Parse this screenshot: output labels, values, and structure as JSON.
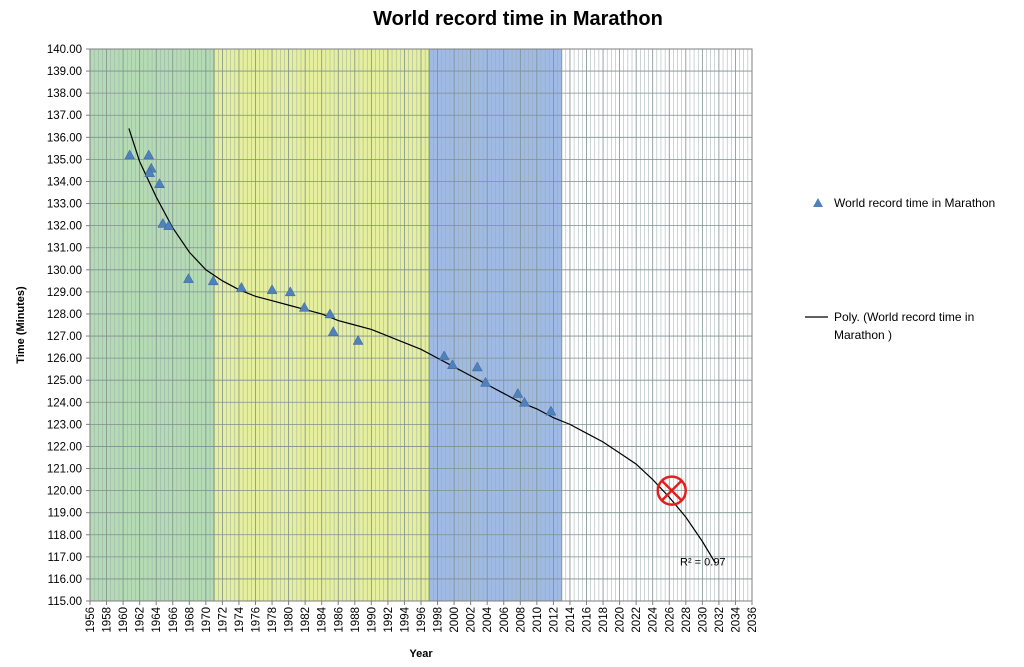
{
  "chart_data": {
    "type": "scatter",
    "title": "World record time in Marathon",
    "xlabel": "Year",
    "ylabel": "Time (Minutes)",
    "xlim": [
      1956,
      2036
    ],
    "ylim": [
      115,
      140
    ],
    "x_ticks": [
      "1956",
      "1958",
      "1960",
      "1962",
      "1964",
      "1966",
      "1968",
      "1970",
      "1972",
      "1974",
      "1976",
      "1978",
      "1980",
      "1982",
      "1984",
      "1986",
      "1988",
      "1990",
      "1992",
      "1994",
      "1996",
      "1998",
      "2000",
      "2002",
      "2004",
      "2006",
      "2008",
      "2010",
      "2012",
      "2014",
      "2016",
      "2018",
      "2020",
      "2022",
      "2024",
      "2026",
      "2028",
      "2030",
      "2032",
      "2034",
      "2036"
    ],
    "y_ticks": [
      "115.00",
      "116.00",
      "117.00",
      "118.00",
      "119.00",
      "120.00",
      "121.00",
      "122.00",
      "123.00",
      "124.00",
      "125.00",
      "126.00",
      "127.00",
      "128.00",
      "129.00",
      "130.00",
      "131.00",
      "132.00",
      "133.00",
      "134.00",
      "135.00",
      "136.00",
      "137.00",
      "138.00",
      "139.00",
      "140.00"
    ],
    "grid": true,
    "bands": [
      {
        "from": 1956,
        "to": 1971,
        "color": "#a8d5a8"
      },
      {
        "from": 1971,
        "to": 1997,
        "color": "#e0ec8c"
      },
      {
        "from": 1997,
        "to": 2013,
        "color": "#8eaee0"
      }
    ],
    "series": [
      {
        "name": "World record time in Marathon",
        "marker": "triangle",
        "color": "#4f81bd",
        "points": [
          {
            "x": 1960.8,
            "y": 135.2
          },
          {
            "x": 1963.1,
            "y": 135.2
          },
          {
            "x": 1963.4,
            "y": 134.6
          },
          {
            "x": 1963.2,
            "y": 134.4
          },
          {
            "x": 1964.4,
            "y": 133.9
          },
          {
            "x": 1964.8,
            "y": 132.1
          },
          {
            "x": 1965.5,
            "y": 132.0
          },
          {
            "x": 1967.9,
            "y": 129.6
          },
          {
            "x": 1970.9,
            "y": 129.5
          },
          {
            "x": 1974.3,
            "y": 129.2
          },
          {
            "x": 1978.0,
            "y": 129.1
          },
          {
            "x": 1980.2,
            "y": 129.0
          },
          {
            "x": 1981.9,
            "y": 128.3
          },
          {
            "x": 1985.0,
            "y": 128.0
          },
          {
            "x": 1985.4,
            "y": 127.2
          },
          {
            "x": 1988.4,
            "y": 126.8
          },
          {
            "x": 1998.8,
            "y": 126.1
          },
          {
            "x": 1999.8,
            "y": 125.7
          },
          {
            "x": 2002.8,
            "y": 125.6
          },
          {
            "x": 2003.8,
            "y": 124.9
          },
          {
            "x": 2007.7,
            "y": 124.4
          },
          {
            "x": 2008.5,
            "y": 124.0
          },
          {
            "x": 2011.7,
            "y": 123.6
          }
        ]
      },
      {
        "name": "Poly. (World record time in Marathon )",
        "type": "line",
        "color": "#000000",
        "points": [
          {
            "x": 1960.7,
            "y": 136.4
          },
          {
            "x": 1962.0,
            "y": 134.9
          },
          {
            "x": 1964.0,
            "y": 133.3
          },
          {
            "x": 1966.0,
            "y": 131.9
          },
          {
            "x": 1968.0,
            "y": 130.8
          },
          {
            "x": 1970.0,
            "y": 130.0
          },
          {
            "x": 1972.0,
            "y": 129.5
          },
          {
            "x": 1974.0,
            "y": 129.1
          },
          {
            "x": 1976.0,
            "y": 128.8
          },
          {
            "x": 1978.0,
            "y": 128.6
          },
          {
            "x": 1980.0,
            "y": 128.4
          },
          {
            "x": 1982.0,
            "y": 128.2
          },
          {
            "x": 1984.0,
            "y": 128.0
          },
          {
            "x": 1986.0,
            "y": 127.7
          },
          {
            "x": 1988.0,
            "y": 127.5
          },
          {
            "x": 1990.0,
            "y": 127.3
          },
          {
            "x": 1992.0,
            "y": 127.0
          },
          {
            "x": 1994.0,
            "y": 126.7
          },
          {
            "x": 1996.0,
            "y": 126.4
          },
          {
            "x": 1998.0,
            "y": 126.0
          },
          {
            "x": 2000.0,
            "y": 125.6
          },
          {
            "x": 2002.0,
            "y": 125.2
          },
          {
            "x": 2004.0,
            "y": 124.8
          },
          {
            "x": 2006.0,
            "y": 124.4
          },
          {
            "x": 2008.0,
            "y": 124.0
          },
          {
            "x": 2010.0,
            "y": 123.7
          },
          {
            "x": 2012.0,
            "y": 123.3
          },
          {
            "x": 2014.0,
            "y": 123.0
          },
          {
            "x": 2016.0,
            "y": 122.6
          },
          {
            "x": 2018.0,
            "y": 122.2
          },
          {
            "x": 2020.0,
            "y": 121.7
          },
          {
            "x": 2022.0,
            "y": 121.2
          },
          {
            "x": 2024.0,
            "y": 120.5
          },
          {
            "x": 2026.0,
            "y": 119.7
          },
          {
            "x": 2028.0,
            "y": 118.8
          },
          {
            "x": 2030.0,
            "y": 117.7
          },
          {
            "x": 2031.6,
            "y": 116.7
          }
        ]
      }
    ],
    "annotations": [
      {
        "type": "crossed-circle",
        "x": 2026.3,
        "y": 120.0,
        "color": "#e0201f"
      },
      {
        "type": "text",
        "text": "R² = 0.97",
        "x": 2027.3,
        "y": 116.6
      }
    ],
    "legend": {
      "position": "right",
      "items": [
        {
          "label": "World record time in Marathon",
          "marker": "triangle",
          "color": "#4f81bd"
        },
        {
          "label_line1": "Poly. (World record time in",
          "label_line2": "Marathon )",
          "marker": "line",
          "color": "#000000"
        }
      ]
    }
  }
}
